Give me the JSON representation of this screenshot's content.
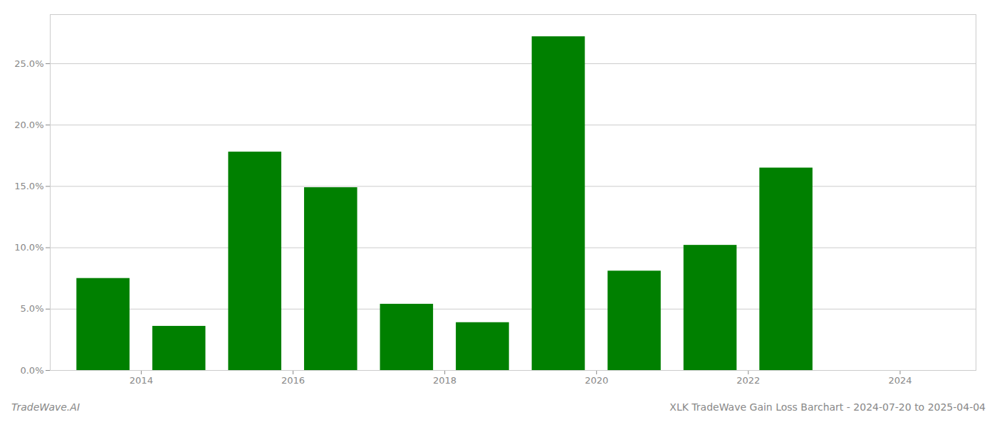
{
  "chart_data": {
    "type": "bar",
    "title": "XLK TradeWave Gain Loss Barchart - 2024-07-20 to 2025-04-04",
    "annotations": [
      "TradeWave.AI"
    ],
    "x": [
      2013.5,
      2014.5,
      2015.5,
      2016.5,
      2017.5,
      2018.5,
      2019.5,
      2020.5,
      2021.5,
      2022.5,
      2023.5
    ],
    "values": [
      0.075,
      0.036,
      0.178,
      0.149,
      0.054,
      0.039,
      0.272,
      0.081,
      0.102,
      0.165,
      0.0
    ],
    "color": "#008000",
    "xlim": [
      2012.8,
      2025.0
    ],
    "xticks": [
      2014,
      2016,
      2018,
      2020,
      2022,
      2024
    ],
    "ylim": [
      0,
      0.29
    ],
    "yticks": [
      {
        "value": 0.0,
        "label": "0.0%"
      },
      {
        "value": 0.05,
        "label": "5.0%"
      },
      {
        "value": 0.1,
        "label": "10.0%"
      },
      {
        "value": 0.15,
        "label": "15.0%"
      },
      {
        "value": 0.2,
        "label": "20.0%"
      },
      {
        "value": 0.25,
        "label": "25.0%"
      }
    ],
    "grid": true
  }
}
